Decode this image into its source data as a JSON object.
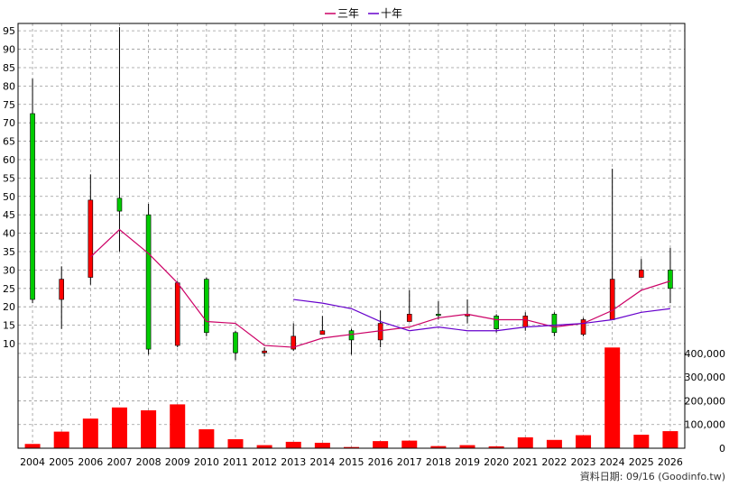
{
  "legend": [
    {
      "label": "三年",
      "color": "#cc0066"
    },
    {
      "label": "十年",
      "color": "#6600cc"
    }
  ],
  "footer": "資料日期: 09/16 (Goodinfo.tw)",
  "colors": {
    "up": "#00cc00",
    "down": "#ff0000",
    "volume": "#ff0000",
    "wick": "#000000",
    "grid": "#999999"
  },
  "chart_data": [
    {
      "type": "candlestick",
      "categories": [
        "2004",
        "2005",
        "2006",
        "2007",
        "2008",
        "2009",
        "2010",
        "2011",
        "2012",
        "2013",
        "2014",
        "2015",
        "2016",
        "2017",
        "2018",
        "2019",
        "2020",
        "2021",
        "2022",
        "2023",
        "2024",
        "2025",
        "2026"
      ],
      "ylim": [
        10,
        97
      ],
      "yticks": [
        10,
        15,
        20,
        25,
        30,
        35,
        40,
        45,
        50,
        55,
        60,
        65,
        70,
        75,
        80,
        85,
        90,
        95
      ],
      "grid": true,
      "ohlc": [
        {
          "open": 22,
          "high": 82,
          "low": 21,
          "close": 72.5
        },
        {
          "open": 27.5,
          "high": 31,
          "low": 14,
          "close": 22
        },
        {
          "open": 49,
          "high": 56,
          "low": 26,
          "close": 28
        },
        {
          "open": 46,
          "high": 96,
          "low": 35,
          "close": 49.5
        },
        {
          "open": 8.5,
          "high": 48,
          "low": 7,
          "close": 45
        },
        {
          "open": 26.5,
          "high": 27,
          "low": 9,
          "close": 9.5
        },
        {
          "open": 13,
          "high": 28,
          "low": 12,
          "close": 27.5
        },
        {
          "open": 7.5,
          "high": 13.5,
          "low": 5.5,
          "close": 13
        },
        {
          "open": 8,
          "high": 9,
          "low": 6.5,
          "close": 7.5
        },
        {
          "open": 12,
          "high": 15.5,
          "low": 8,
          "close": 8.5
        },
        {
          "open": 13.5,
          "high": 17.5,
          "low": 12.5,
          "close": 12.5
        },
        {
          "open": 11,
          "high": 14,
          "low": 7,
          "close": 13.5
        },
        {
          "open": 15.5,
          "high": 19,
          "low": 9,
          "close": 11
        },
        {
          "open": 18,
          "high": 24.5,
          "low": 16,
          "close": 16
        },
        {
          "open": 18,
          "high": 21.5,
          "low": 16.5,
          "close": 18
        },
        {
          "open": 18,
          "high": 22,
          "low": 15.5,
          "close": 17.5
        },
        {
          "open": 14,
          "high": 18,
          "low": 13,
          "close": 17.5
        },
        {
          "open": 17.5,
          "high": 18.5,
          "low": 13.5,
          "close": 14.5
        },
        {
          "open": 13,
          "high": 18.5,
          "low": 12,
          "close": 18
        },
        {
          "open": 16.5,
          "high": 17,
          "low": 12,
          "close": 12.5
        },
        {
          "open": 27.5,
          "high": 57.5,
          "low": 16.5,
          "close": 16.5
        },
        {
          "open": 30,
          "high": 33,
          "low": 28,
          "close": 28
        },
        {
          "open": 25,
          "high": 36,
          "low": 21,
          "close": 30
        }
      ],
      "series": [
        {
          "name": "三年",
          "values": [
            null,
            null,
            33.5,
            41,
            34.5,
            26.5,
            16,
            15.5,
            9.5,
            9,
            11.5,
            12.5,
            13.5,
            14.5,
            17,
            18,
            16.5,
            16.5,
            14.5,
            15.5,
            19,
            24.5,
            27
          ]
        },
        {
          "name": "十年",
          "values": [
            null,
            null,
            null,
            null,
            null,
            null,
            null,
            null,
            null,
            22,
            21,
            19.5,
            16,
            13.5,
            14.5,
            13.5,
            13.5,
            14.5,
            15,
            15.5,
            16.5,
            18.5,
            19.5
          ]
        }
      ]
    },
    {
      "type": "bar",
      "categories": [
        "2004",
        "2005",
        "2006",
        "2007",
        "2008",
        "2009",
        "2010",
        "2011",
        "2012",
        "2013",
        "2014",
        "2015",
        "2016",
        "2017",
        "2018",
        "2019",
        "2020",
        "2021",
        "2022",
        "2023",
        "2024",
        "2025",
        "2026"
      ],
      "values": [
        18000,
        70000,
        125000,
        172000,
        160000,
        185000,
        80000,
        38000,
        13000,
        27000,
        23000,
        5000,
        30000,
        32000,
        9000,
        13000,
        8000,
        46000,
        35000,
        55000,
        425000,
        57000,
        72000
      ],
      "ylim": [
        0,
        430000
      ],
      "yticks": [
        "0",
        "100,000",
        "200,000",
        "300,000",
        "400,000"
      ],
      "ytick_values": [
        0,
        100000,
        200000,
        300000,
        400000
      ],
      "grid": true
    }
  ]
}
